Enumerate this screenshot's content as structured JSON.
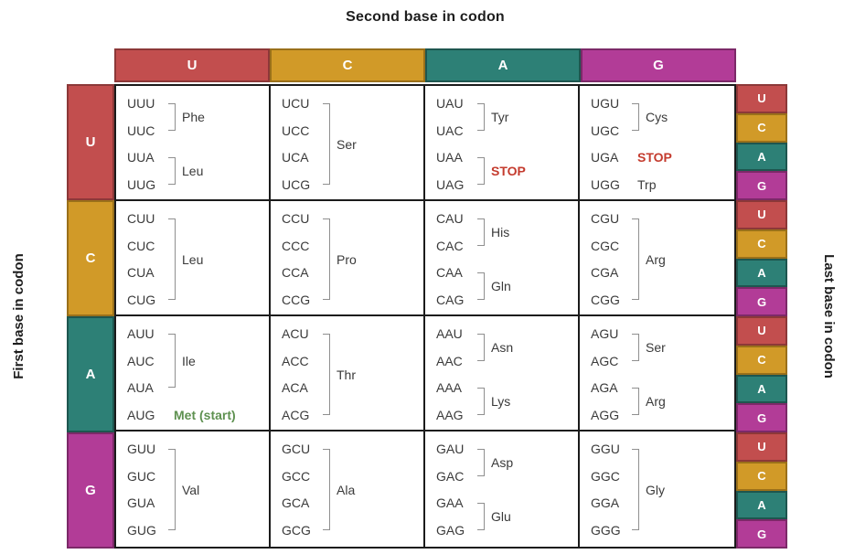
{
  "title": "Second base in codon",
  "left_axis_label": "First base in codon",
  "right_axis_label": "Last base in codon",
  "column_headers": [
    "U",
    "C",
    "A",
    "G"
  ],
  "row_headers": [
    "U",
    "C",
    "A",
    "G"
  ],
  "last_base_labels_per_row": [
    "U",
    "C",
    "A",
    "G"
  ],
  "colors": {
    "base_fill": {
      "U": "#C24E4E",
      "C": "#D19A28",
      "A": "#2D8076",
      "G": "#B23C97"
    },
    "base_border": {
      "U": "#8C3838",
      "C": "#9A701A",
      "A": "#1E564F",
      "G": "#7C2968"
    },
    "grid_line": "#1B1B1B",
    "codon_text": "#3A3A3A",
    "bracket": "#8F8F8F",
    "stop_label": "#C43B2E",
    "start_label": "#5E9150"
  },
  "grid": {
    "rows": [
      {
        "first_base": "U",
        "cells": [
          {
            "second_base": "U",
            "groups": [
              {
                "codons": [
                  "UUU",
                  "UUC"
                ],
                "label": "Phe",
                "bracket": true,
                "style": "normal"
              },
              {
                "codons": [
                  "UUA",
                  "UUG"
                ],
                "label": "Leu",
                "bracket": true,
                "style": "normal"
              }
            ]
          },
          {
            "second_base": "C",
            "groups": [
              {
                "codons": [
                  "UCU",
                  "UCC",
                  "UCA",
                  "UCG"
                ],
                "label": "Ser",
                "bracket": true,
                "style": "normal"
              }
            ]
          },
          {
            "second_base": "A",
            "groups": [
              {
                "codons": [
                  "UAU",
                  "UAC"
                ],
                "label": "Tyr",
                "bracket": true,
                "style": "normal"
              },
              {
                "codons": [
                  "UAA",
                  "UAG"
                ],
                "label": "STOP",
                "bracket": true,
                "style": "stop"
              }
            ]
          },
          {
            "second_base": "G",
            "groups": [
              {
                "codons": [
                  "UGU",
                  "UGC"
                ],
                "label": "Cys",
                "bracket": true,
                "style": "normal"
              },
              {
                "codons": [
                  "UGA"
                ],
                "label": "STOP",
                "bracket": false,
                "style": "stop"
              },
              {
                "codons": [
                  "UGG"
                ],
                "label": "Trp",
                "bracket": false,
                "style": "normal"
              }
            ]
          }
        ]
      },
      {
        "first_base": "C",
        "cells": [
          {
            "second_base": "U",
            "groups": [
              {
                "codons": [
                  "CUU",
                  "CUC",
                  "CUA",
                  "CUG"
                ],
                "label": "Leu",
                "bracket": true,
                "style": "normal"
              }
            ]
          },
          {
            "second_base": "C",
            "groups": [
              {
                "codons": [
                  "CCU",
                  "CCC",
                  "CCA",
                  "CCG"
                ],
                "label": "Pro",
                "bracket": true,
                "style": "normal"
              }
            ]
          },
          {
            "second_base": "A",
            "groups": [
              {
                "codons": [
                  "CAU",
                  "CAC"
                ],
                "label": "His",
                "bracket": true,
                "style": "normal"
              },
              {
                "codons": [
                  "CAA",
                  "CAG"
                ],
                "label": "Gln",
                "bracket": true,
                "style": "normal"
              }
            ]
          },
          {
            "second_base": "G",
            "groups": [
              {
                "codons": [
                  "CGU",
                  "CGC",
                  "CGA",
                  "CGG"
                ],
                "label": "Arg",
                "bracket": true,
                "style": "normal"
              }
            ]
          }
        ]
      },
      {
        "first_base": "A",
        "cells": [
          {
            "second_base": "U",
            "groups": [
              {
                "codons": [
                  "AUU",
                  "AUC",
                  "AUA"
                ],
                "label": "Ile",
                "bracket": true,
                "style": "normal"
              },
              {
                "codons": [
                  "AUG"
                ],
                "label": "Met (start)",
                "bracket": false,
                "style": "start"
              }
            ]
          },
          {
            "second_base": "C",
            "groups": [
              {
                "codons": [
                  "ACU",
                  "ACC",
                  "ACA",
                  "ACG"
                ],
                "label": "Thr",
                "bracket": true,
                "style": "normal"
              }
            ]
          },
          {
            "second_base": "A",
            "groups": [
              {
                "codons": [
                  "AAU",
                  "AAC"
                ],
                "label": "Asn",
                "bracket": true,
                "style": "normal"
              },
              {
                "codons": [
                  "AAA",
                  "AAG"
                ],
                "label": "Lys",
                "bracket": true,
                "style": "normal"
              }
            ]
          },
          {
            "second_base": "G",
            "groups": [
              {
                "codons": [
                  "AGU",
                  "AGC"
                ],
                "label": "Ser",
                "bracket": true,
                "style": "normal"
              },
              {
                "codons": [
                  "AGA",
                  "AGG"
                ],
                "label": "Arg",
                "bracket": true,
                "style": "normal"
              }
            ]
          }
        ]
      },
      {
        "first_base": "G",
        "cells": [
          {
            "second_base": "U",
            "groups": [
              {
                "codons": [
                  "GUU",
                  "GUC",
                  "GUA",
                  "GUG"
                ],
                "label": "Val",
                "bracket": true,
                "style": "normal"
              }
            ]
          },
          {
            "second_base": "C",
            "groups": [
              {
                "codons": [
                  "GCU",
                  "GCC",
                  "GCA",
                  "GCG"
                ],
                "label": "Ala",
                "bracket": true,
                "style": "normal"
              }
            ]
          },
          {
            "second_base": "A",
            "groups": [
              {
                "codons": [
                  "GAU",
                  "GAC"
                ],
                "label": "Asp",
                "bracket": true,
                "style": "normal"
              },
              {
                "codons": [
                  "GAA",
                  "GAG"
                ],
                "label": "Glu",
                "bracket": true,
                "style": "normal"
              }
            ]
          },
          {
            "second_base": "G",
            "groups": [
              {
                "codons": [
                  "GGU",
                  "GGC",
                  "GGA",
                  "GGG"
                ],
                "label": "Gly",
                "bracket": true,
                "style": "normal"
              }
            ]
          }
        ]
      }
    ]
  }
}
